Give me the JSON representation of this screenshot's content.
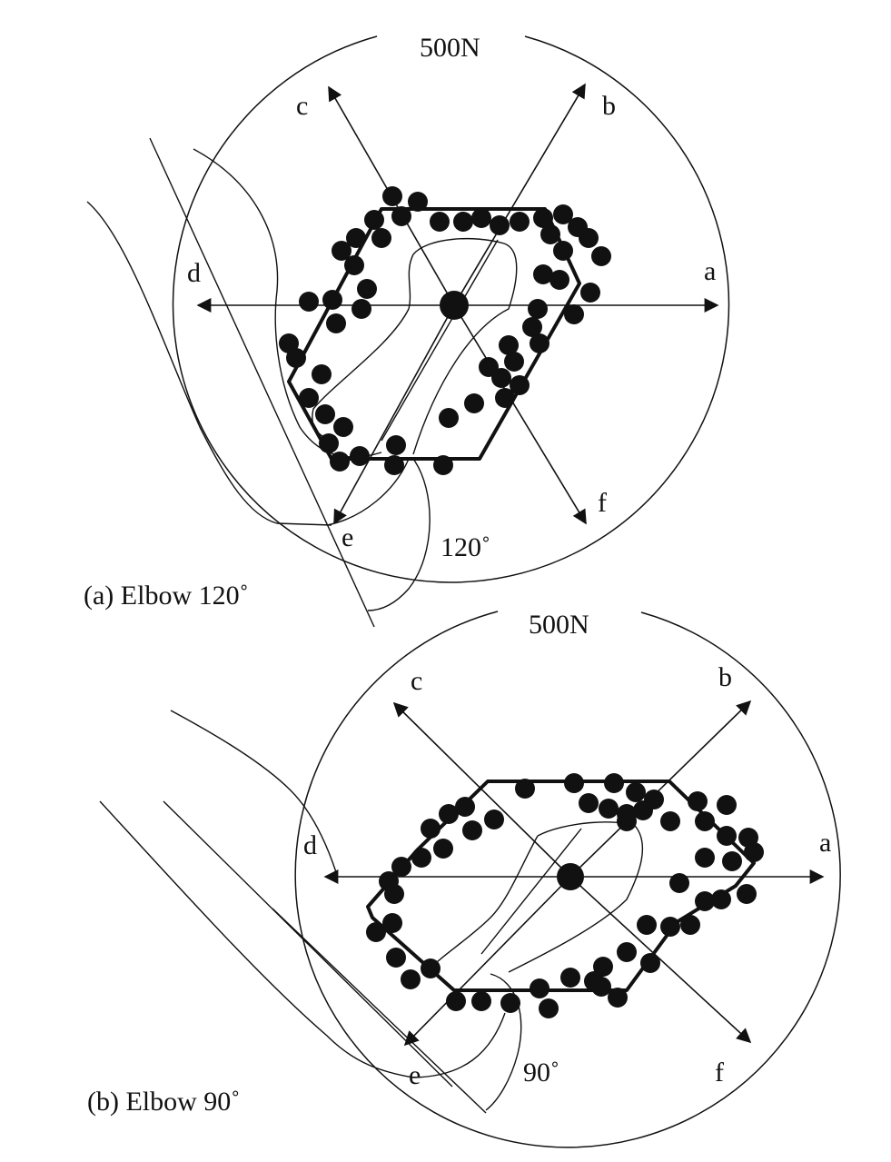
{
  "figures": [
    {
      "id": "a",
      "scale_label": "500N",
      "directions": [
        "a",
        "b",
        "c",
        "d",
        "e",
        "f"
      ],
      "angle_label": "120˚",
      "caption": "(a)  Elbow 120˚"
    },
    {
      "id": "b",
      "scale_label": "500N",
      "directions": [
        "a",
        "b",
        "c",
        "d",
        "e",
        "f"
      ],
      "angle_label": "90˚",
      "caption": "(b)  Elbow 90˚"
    }
  ],
  "colors": {
    "ink": "#111111",
    "background": "#ffffff"
  }
}
